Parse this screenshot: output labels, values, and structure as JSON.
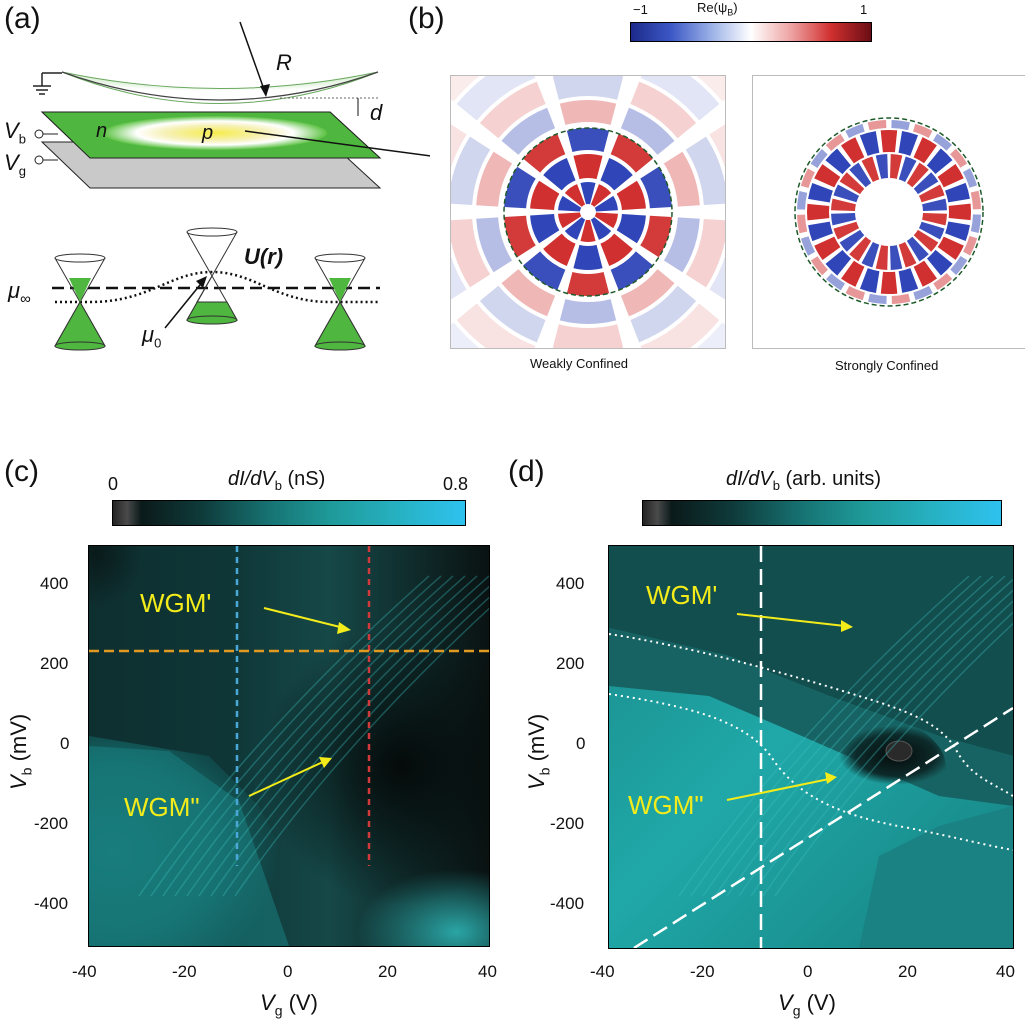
{
  "panels": {
    "a": {
      "label": "(a)",
      "symbols": {
        "R": "R",
        "d": "d",
        "Vb": "V",
        "Vb_sub": "b",
        "Vg": "V",
        "Vg_sub": "g",
        "n": "n",
        "p": "p",
        "U": "U(r)",
        "mu_inf": "μ",
        "mu_inf_sub": "∞",
        "mu0": "μ",
        "mu0_sub": "0"
      }
    },
    "b": {
      "label": "(b)",
      "colorbar": {
        "min": "−1",
        "max": "1",
        "title": "Re(ψ",
        "title_sub": "B",
        "title_end": ")"
      },
      "left_caption": "Weakly Confined",
      "right_caption": "Strongly Confined"
    },
    "c": {
      "label": "(c)",
      "colorbar": {
        "title_italic": "dI/dV",
        "title_sub": "b",
        "title_unit": " (nS)",
        "min": "0",
        "max": "0.8"
      },
      "annotations": {
        "wgm1": "WGM'",
        "wgm2": "WGM\""
      },
      "ylabel": "V",
      "ylabel_sub": "b",
      "ylabel_unit": " (mV)",
      "xlabel": "V",
      "xlabel_sub": "g",
      "xlabel_unit": " (V)"
    },
    "d": {
      "label": "(d)",
      "colorbar": {
        "title_italic": "dI/dV",
        "title_sub": "b",
        "title_unit": " (arb. units)"
      },
      "annotations": {
        "wgm1": "WGM'",
        "wgm2": "WGM\""
      },
      "ylabel": "V",
      "ylabel_sub": "b",
      "ylabel_unit": " (mV)",
      "xlabel": "V",
      "xlabel_sub": "g",
      "xlabel_unit": " (V)"
    }
  },
  "chart_data": [
    {
      "type": "heatmap",
      "panel": "c",
      "x_ticks": [
        "-40",
        "-20",
        "0",
        "20",
        "40"
      ],
      "y_ticks": [
        "400",
        "200",
        "0",
        "-200",
        "-400"
      ],
      "xlim": [
        -40,
        40
      ],
      "ylim": [
        -500,
        500
      ],
      "colorbar_range": [
        0,
        0.8
      ],
      "colors": {
        "low": "#0b1414",
        "high": "#2ec0ea",
        "mid": "#1f8c8c"
      }
    },
    {
      "type": "heatmap",
      "panel": "d",
      "x_ticks": [
        "-40",
        "-20",
        "0",
        "20",
        "40"
      ],
      "y_ticks": [
        "400",
        "200",
        "0",
        "-200",
        "-400"
      ],
      "xlim": [
        -40,
        40
      ],
      "ylim": [
        -500,
        500
      ]
    }
  ]
}
